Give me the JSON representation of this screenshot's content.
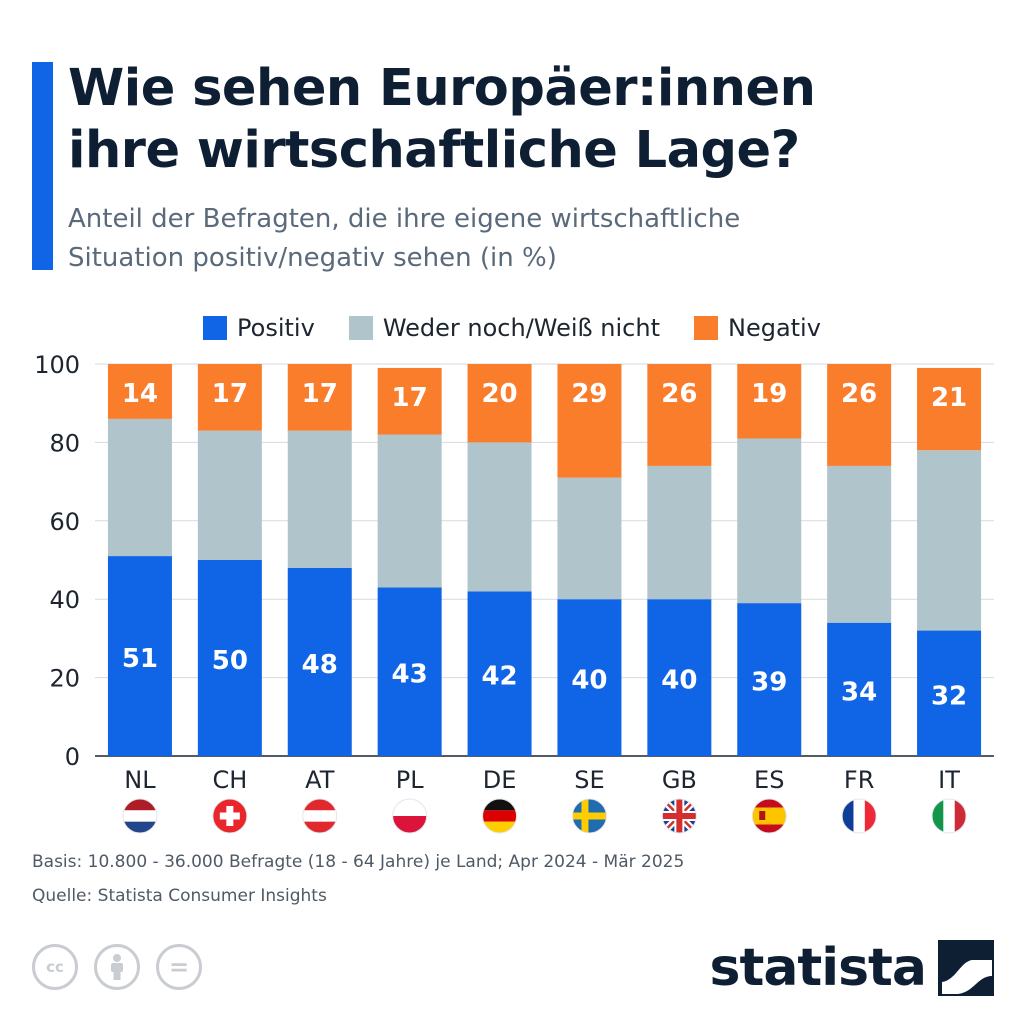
{
  "title_line1": "Wie sehen Europäer:innen",
  "title_line2": "ihre wirtschaftliche Lage?",
  "subtitle_line1": "Anteil der Befragten, die ihre eigene wirtschaftliche",
  "subtitle_line2": "Situation positiv/negativ sehen (in %)",
  "colors": {
    "positive": "#0f65e6",
    "neutral": "#b0c4cc",
    "negative": "#fa7d2c",
    "accent": "#0f65e6"
  },
  "chart_data": {
    "type": "bar",
    "stacked": true,
    "categories": [
      "NL",
      "CH",
      "AT",
      "PL",
      "DE",
      "SE",
      "GB",
      "ES",
      "FR",
      "IT"
    ],
    "series": [
      {
        "name": "Positiv",
        "values": [
          51,
          50,
          48,
          43,
          42,
          40,
          40,
          39,
          34,
          32
        ]
      },
      {
        "name": "Weder noch/Weiß nicht",
        "values": [
          35,
          33,
          35,
          39,
          38,
          31,
          34,
          42,
          40,
          46
        ]
      },
      {
        "name": "Negativ",
        "values": [
          14,
          17,
          17,
          17,
          20,
          29,
          26,
          19,
          26,
          21
        ]
      }
    ],
    "ylim": [
      0,
      100
    ],
    "yticks": [
      "0",
      "20",
      "40",
      "60",
      "80",
      "100"
    ],
    "grid": true,
    "legend": "top",
    "data_labels": [
      "Positiv",
      "Negativ"
    ]
  },
  "flags": [
    "netherlands-flag",
    "switzerland-flag",
    "austria-flag",
    "poland-flag",
    "germany-flag",
    "sweden-flag",
    "uk-flag",
    "spain-flag",
    "france-flag",
    "italy-flag"
  ],
  "footer": {
    "basis": "Basis: 10.800 - 36.000 Befragte (18 - 64 Jahre) je Land; Apr 2024 - Mär 2025",
    "source": "Quelle: Statista Consumer Insights",
    "logo_text": "statista",
    "cc_label": "cc",
    "cc_equal": "="
  }
}
